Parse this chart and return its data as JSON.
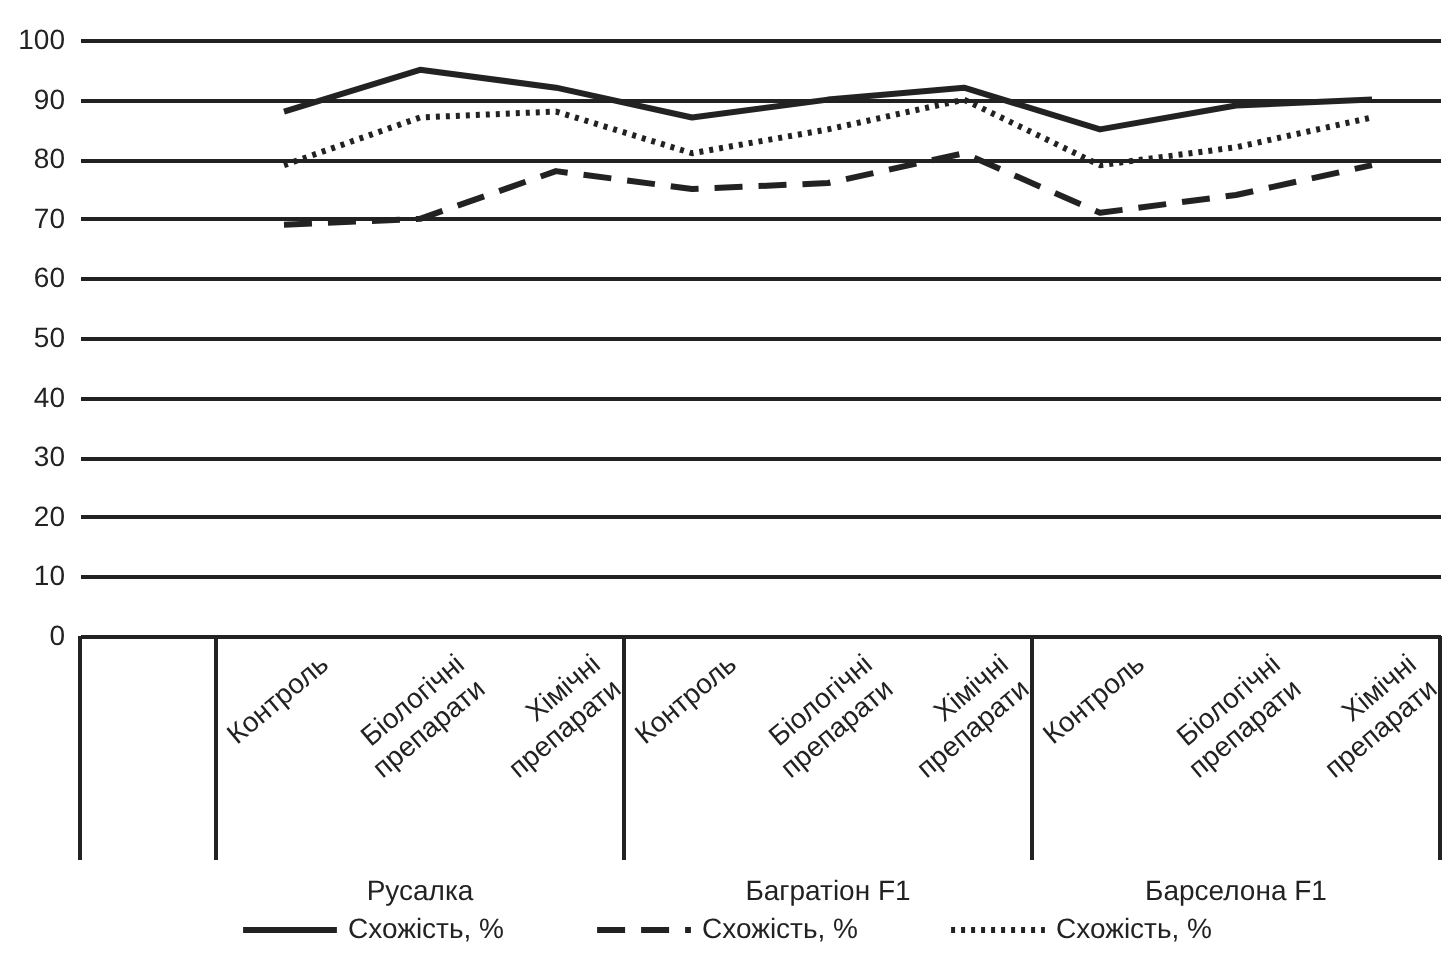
{
  "chart_data": {
    "type": "line",
    "categories": [
      null,
      "Контроль",
      "Біологічні препарати",
      "Хімічні препарати",
      "Контроль",
      "Біологічні препарати",
      "Хімічні препарати",
      "Контроль",
      "Біологічні препарати",
      "Хімічні препарати"
    ],
    "series": [
      {
        "name": "Схожість, %",
        "color": "#222222",
        "line_style": "solid",
        "values": [
          null,
          88,
          95,
          92,
          87,
          90,
          92,
          85,
          89,
          90
        ]
      },
      {
        "name": "Схожість, %",
        "color": "#222222",
        "line_style": "dashed",
        "values": [
          null,
          69,
          70,
          78,
          75,
          76,
          81,
          71,
          74,
          79
        ]
      },
      {
        "name": "Схожість, %",
        "color": "#222222",
        "line_style": "dotted",
        "values": [
          null,
          79,
          87,
          88,
          81,
          85,
          90,
          79,
          82,
          87
        ]
      }
    ],
    "ylim": [
      0,
      100
    ],
    "yticks": [
      0,
      10,
      20,
      30,
      40,
      50,
      60,
      70,
      80,
      90,
      100
    ],
    "grid": "y",
    "legend": "bottom",
    "marker": "none",
    "annotations": [
      "Русалка",
      "Багратіон F1",
      "Барселона F1"
    ]
  }
}
